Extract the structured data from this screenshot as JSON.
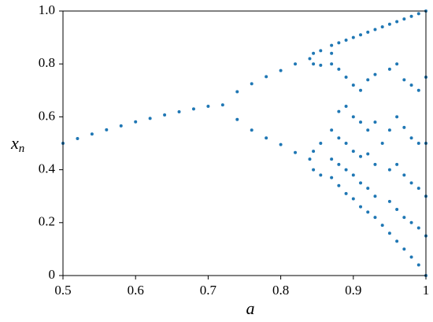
{
  "chart_data": {
    "type": "scatter",
    "xlabel": "a",
    "ylabel": {
      "text": "x",
      "subscript": "n"
    },
    "color": "#1f77b4",
    "xlim": [
      0.5,
      1
    ],
    "ylim": [
      0,
      1
    ],
    "xticks": [
      0.5,
      0.6,
      0.7,
      0.8,
      0.9,
      1
    ],
    "yticks": [
      0,
      0.2,
      0.4,
      0.6,
      0.8,
      {
        "value": 1,
        "label": "1.0"
      }
    ],
    "x": [
      0.5,
      0.52,
      0.54,
      0.56,
      0.58,
      0.6,
      0.62,
      0.64,
      0.66,
      0.68,
      0.7,
      0.72,
      0.74,
      0.74,
      0.76,
      0.76,
      0.78,
      0.78,
      0.8,
      0.8,
      0.82,
      0.82,
      0.84,
      0.84,
      0.845,
      0.845,
      0.845,
      0.845,
      0.855,
      0.855,
      0.855,
      0.855,
      0.87,
      0.87,
      0.87,
      0.87,
      0.87,
      0.87,
      0.88,
      0.88,
      0.88,
      0.88,
      0.88,
      0.88,
      0.89,
      0.89,
      0.89,
      0.89,
      0.89,
      0.89,
      0.9,
      0.9,
      0.9,
      0.9,
      0.9,
      0.9,
      0.91,
      0.91,
      0.91,
      0.91,
      0.91,
      0.91,
      0.92,
      0.92,
      0.92,
      0.92,
      0.92,
      0.92,
      0.93,
      0.93,
      0.93,
      0.93,
      0.93,
      0.93,
      0.94,
      0.94,
      0.94,
      0.95,
      0.95,
      0.95,
      0.95,
      0.95,
      0.95,
      0.96,
      0.96,
      0.96,
      0.96,
      0.96,
      0.96,
      0.97,
      0.97,
      0.97,
      0.97,
      0.97,
      0.97,
      0.98,
      0.98,
      0.98,
      0.98,
      0.98,
      0.98,
      0.99,
      0.99,
      0.99,
      0.99,
      0.99,
      0.99,
      1.0,
      1.0,
      1.0,
      1.0,
      1.0,
      1.0
    ],
    "y": [
      0.5,
      0.518,
      0.535,
      0.551,
      0.566,
      0.581,
      0.594,
      0.607,
      0.619,
      0.63,
      0.64,
      0.645,
      0.695,
      0.59,
      0.725,
      0.55,
      0.752,
      0.52,
      0.775,
      0.495,
      0.8,
      0.465,
      0.82,
      0.44,
      0.84,
      0.8,
      0.47,
      0.4,
      0.85,
      0.795,
      0.5,
      0.38,
      0.37,
      0.44,
      0.55,
      0.8,
      0.84,
      0.87,
      0.34,
      0.42,
      0.52,
      0.62,
      0.78,
      0.88,
      0.31,
      0.4,
      0.5,
      0.64,
      0.75,
      0.89,
      0.29,
      0.38,
      0.47,
      0.6,
      0.72,
      0.9,
      0.26,
      0.35,
      0.45,
      0.58,
      0.7,
      0.91,
      0.24,
      0.33,
      0.46,
      0.55,
      0.74,
      0.92,
      0.22,
      0.3,
      0.42,
      0.58,
      0.76,
      0.93,
      0.19,
      0.5,
      0.94,
      0.16,
      0.28,
      0.4,
      0.55,
      0.78,
      0.95,
      0.13,
      0.25,
      0.42,
      0.6,
      0.8,
      0.96,
      0.1,
      0.22,
      0.38,
      0.56,
      0.74,
      0.97,
      0.07,
      0.2,
      0.35,
      0.52,
      0.72,
      0.98,
      0.04,
      0.18,
      0.33,
      0.5,
      0.7,
      0.99,
      0.0,
      0.15,
      0.3,
      0.5,
      0.75,
      1.0
    ]
  }
}
